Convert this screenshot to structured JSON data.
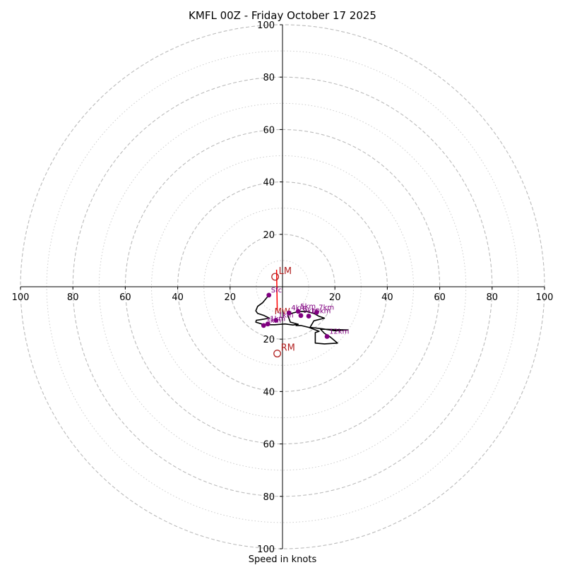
{
  "chart_data": {
    "type": "hodograph",
    "title": "KMFL 00Z - Friday October 17 2025",
    "xlabel": "Speed in knots",
    "axis_range": [
      -100,
      100
    ],
    "ring_major": [
      20,
      40,
      60,
      80,
      100
    ],
    "ring_minor": [
      10,
      30,
      50,
      70,
      90
    ],
    "x_ticks": [
      {
        "value": -100,
        "label": "100"
      },
      {
        "value": -80,
        "label": "80"
      },
      {
        "value": -60,
        "label": "60"
      },
      {
        "value": -40,
        "label": "40"
      },
      {
        "value": -20,
        "label": "20"
      },
      {
        "value": 20,
        "label": "20"
      },
      {
        "value": 40,
        "label": "40"
      },
      {
        "value": 60,
        "label": "60"
      },
      {
        "value": 80,
        "label": "80"
      },
      {
        "value": 100,
        "label": "100"
      }
    ],
    "y_ticks": [
      {
        "value": 100,
        "label": "100"
      },
      {
        "value": 80,
        "label": "80"
      },
      {
        "value": 60,
        "label": "60"
      },
      {
        "value": 40,
        "label": "40"
      },
      {
        "value": 20,
        "label": "20"
      },
      {
        "value": -20,
        "label": "20"
      },
      {
        "value": -40,
        "label": "40"
      },
      {
        "value": -60,
        "label": "60"
      },
      {
        "value": -80,
        "label": "80"
      },
      {
        "value": -100,
        "label": "100"
      }
    ],
    "wind_trace": [
      [
        -5.2,
        -3.2
      ],
      [
        -7.5,
        -6
      ],
      [
        -9.5,
        -7.5
      ],
      [
        -10.2,
        -9.2
      ],
      [
        -9.5,
        -10.2
      ],
      [
        -7,
        -11
      ],
      [
        -5,
        -12
      ],
      [
        -8,
        -12.5
      ],
      [
        -10,
        -12.8
      ],
      [
        -10.2,
        -13.5
      ],
      [
        -7,
        -14.5
      ],
      [
        -3,
        -14.5
      ],
      [
        1,
        -14.2
      ],
      [
        4,
        -14.6
      ],
      [
        6,
        -14.3
      ],
      [
        3,
        -13.5
      ],
      [
        2,
        -10.8
      ],
      [
        4,
        -10
      ],
      [
        6,
        -9.5
      ],
      [
        9,
        -9.4
      ],
      [
        12,
        -10.2
      ],
      [
        14,
        -11.3
      ],
      [
        16,
        -12
      ],
      [
        12,
        -13
      ],
      [
        10.5,
        -15.5
      ],
      [
        15,
        -16
      ],
      [
        20,
        -16.8
      ],
      [
        25,
        -16.5
      ],
      [
        14.5,
        -16.2
      ],
      [
        16,
        -17.8
      ],
      [
        18,
        -19
      ],
      [
        21,
        -21.5
      ],
      [
        16,
        -21.8
      ],
      [
        12.5,
        -21.5
      ],
      [
        12.5,
        -17.5
      ],
      [
        14,
        -17
      ],
      [
        10,
        -15.5
      ],
      [
        7,
        -14.8
      ],
      [
        5,
        -14.8
      ]
    ],
    "height_markers": [
      {
        "label": "Sfc",
        "u": -5.2,
        "v": -3.2
      },
      {
        "label": "3km",
        "u": -7.2,
        "v": -14.8
      },
      {
        "label": "1km",
        "u": -5.6,
        "v": -14.2
      },
      {
        "label": "1km",
        "u": -2.5,
        "v": -12.8
      },
      {
        "label": "4km",
        "u": 2.5,
        "v": -10
      },
      {
        "label": "5km",
        "u": 6,
        "v": -9.4
      },
      {
        "label": "9km",
        "u": 7,
        "v": -11
      },
      {
        "label": "10km",
        "u": 10,
        "v": -11.2
      },
      {
        "label": "7km",
        "u": 13,
        "v": -9.8
      },
      {
        "label": "12km",
        "u": 17,
        "v": -19
      }
    ],
    "storm_motion": [
      {
        "label": "LM",
        "u": -2.8,
        "v": 3.8
      },
      {
        "label": "MW",
        "u": -2,
        "v": -9.2
      },
      {
        "label": "RM",
        "u": -2,
        "v": -25.5
      }
    ],
    "colors": {
      "trace": "#000000",
      "marker": "#800080",
      "storm": "#b22222",
      "ring": "#bbbbbb",
      "axis": "#000000"
    }
  }
}
